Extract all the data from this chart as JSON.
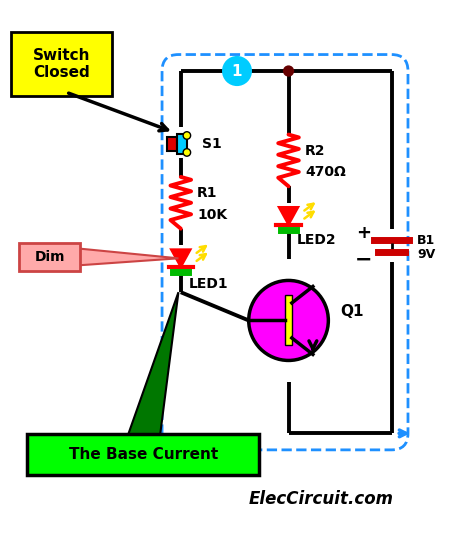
{
  "bg_color": "#ffffff",
  "title": "ElecCircuit.com",
  "fig_width": 4.74,
  "fig_height": 5.35,
  "dpi": 100,
  "switch_label": "S1",
  "switch_closed_label": "Switch\nClosed",
  "r1_label": "R1",
  "r1_value": "10K",
  "r2_label": "R2",
  "r2_value": "470Ω",
  "led1_label": "LED1",
  "led2_label": "LED2",
  "transistor_label": "Q1",
  "battery_label_b": "B1",
  "battery_label_v": "9V",
  "base_current_label": "The Base Current",
  "dim_label": "Dim",
  "node1_label": "1",
  "wire_color": "#000000",
  "dashed_color": "#1e90ff",
  "resistor_color": "#ff0000",
  "led_color": "#ff0000",
  "led_emit_color": "#ffdd00",
  "transistor_bg": "#ff00ff",
  "transistor_body": "#ffff00",
  "switch_body": "#00ccff",
  "switch_contact": "#dd0000",
  "battery_color": "#cc0000",
  "switch_closed_bg": "#ffff00",
  "base_current_bg": "#00ff00",
  "dim_bg": "#ffaaaa",
  "node_dot_color": "#660000",
  "node_circle_color": "#00ccff",
  "arrow_color": "#1e90ff",
  "green_arrow_color": "#007700"
}
